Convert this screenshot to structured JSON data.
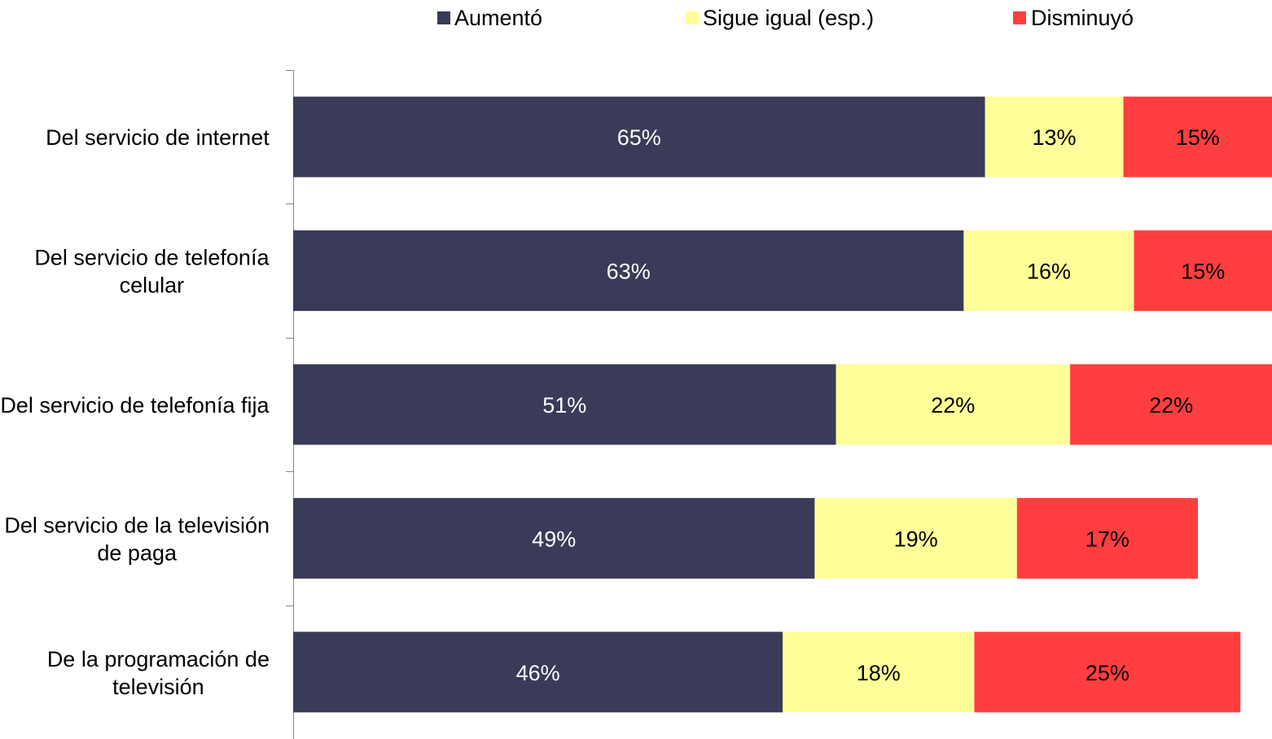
{
  "chart_data": {
    "type": "bar",
    "orientation": "horizontal",
    "stacked": true,
    "title": "",
    "xlabel": "",
    "ylabel": "",
    "legend_position": "top",
    "grid": false,
    "xlim": [
      0,
      100
    ],
    "categories": [
      [
        "Del servicio de internet"
      ],
      [
        "Del servicio de telefonía",
        "celular"
      ],
      [
        "Del servicio de telefonía fija"
      ],
      [
        "Del servicio de la televisión",
        "de paga"
      ],
      [
        "De la programación de",
        "televisión"
      ]
    ],
    "series": [
      {
        "name": "Aumentó",
        "color": "#393b58",
        "label_color": "#ffffff",
        "values": [
          65,
          63,
          51,
          49,
          46
        ],
        "labels": [
          "65%",
          "63%",
          "51%",
          "49%",
          "46%"
        ]
      },
      {
        "name": "Sigue igual (esp.)",
        "color": "#ffff99",
        "label_color": "#000000",
        "values": [
          13,
          16,
          22,
          19,
          18
        ],
        "labels": [
          "13%",
          "16%",
          "22%",
          "19%",
          "18%"
        ]
      },
      {
        "name": "Disminuyó",
        "color": "#ff3f3f",
        "label_color": "#000000",
        "values": [
          15,
          15,
          22,
          17,
          25
        ],
        "labels": [
          "15%",
          "15%",
          "22%",
          "17%",
          "25%"
        ]
      }
    ]
  }
}
